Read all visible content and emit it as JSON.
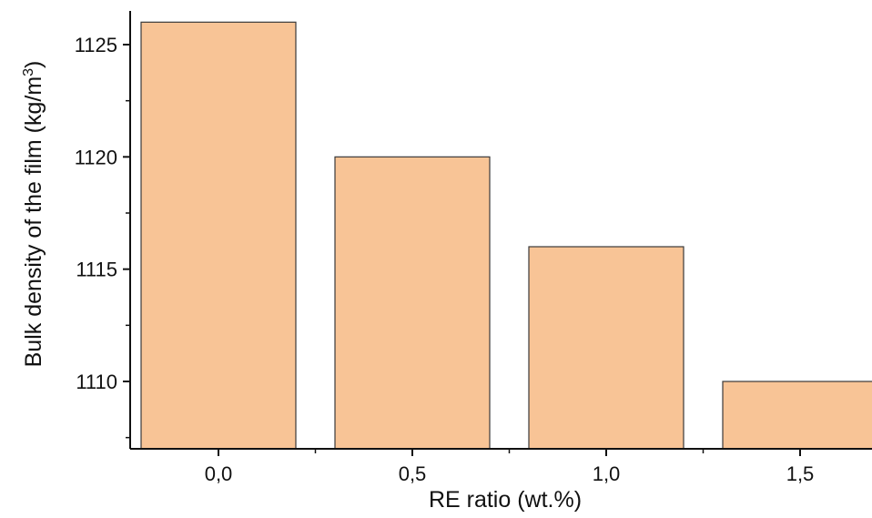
{
  "chart_data": {
    "type": "bar",
    "categories": [
      "0,0",
      "0,5",
      "1,0",
      "1,5"
    ],
    "values": [
      1126,
      1120,
      1116,
      1110
    ],
    "xlabel": "RE ratio (wt.%)",
    "ylabel": "Bulk density of the film (kg/m",
    "ylabel_superscript": "3",
    "ylabel_suffix": ")",
    "ylim": [
      1107,
      1126.5
    ],
    "yticks": [
      "1110",
      "1115",
      "1120",
      "1125"
    ],
    "ytick_values": [
      1110,
      1115,
      1120,
      1125
    ],
    "grid": false,
    "legend": "none",
    "colors": {
      "bar_fill": "#f8c496",
      "bar_stroke": "#3a3a3a",
      "axis": "#111111"
    }
  }
}
